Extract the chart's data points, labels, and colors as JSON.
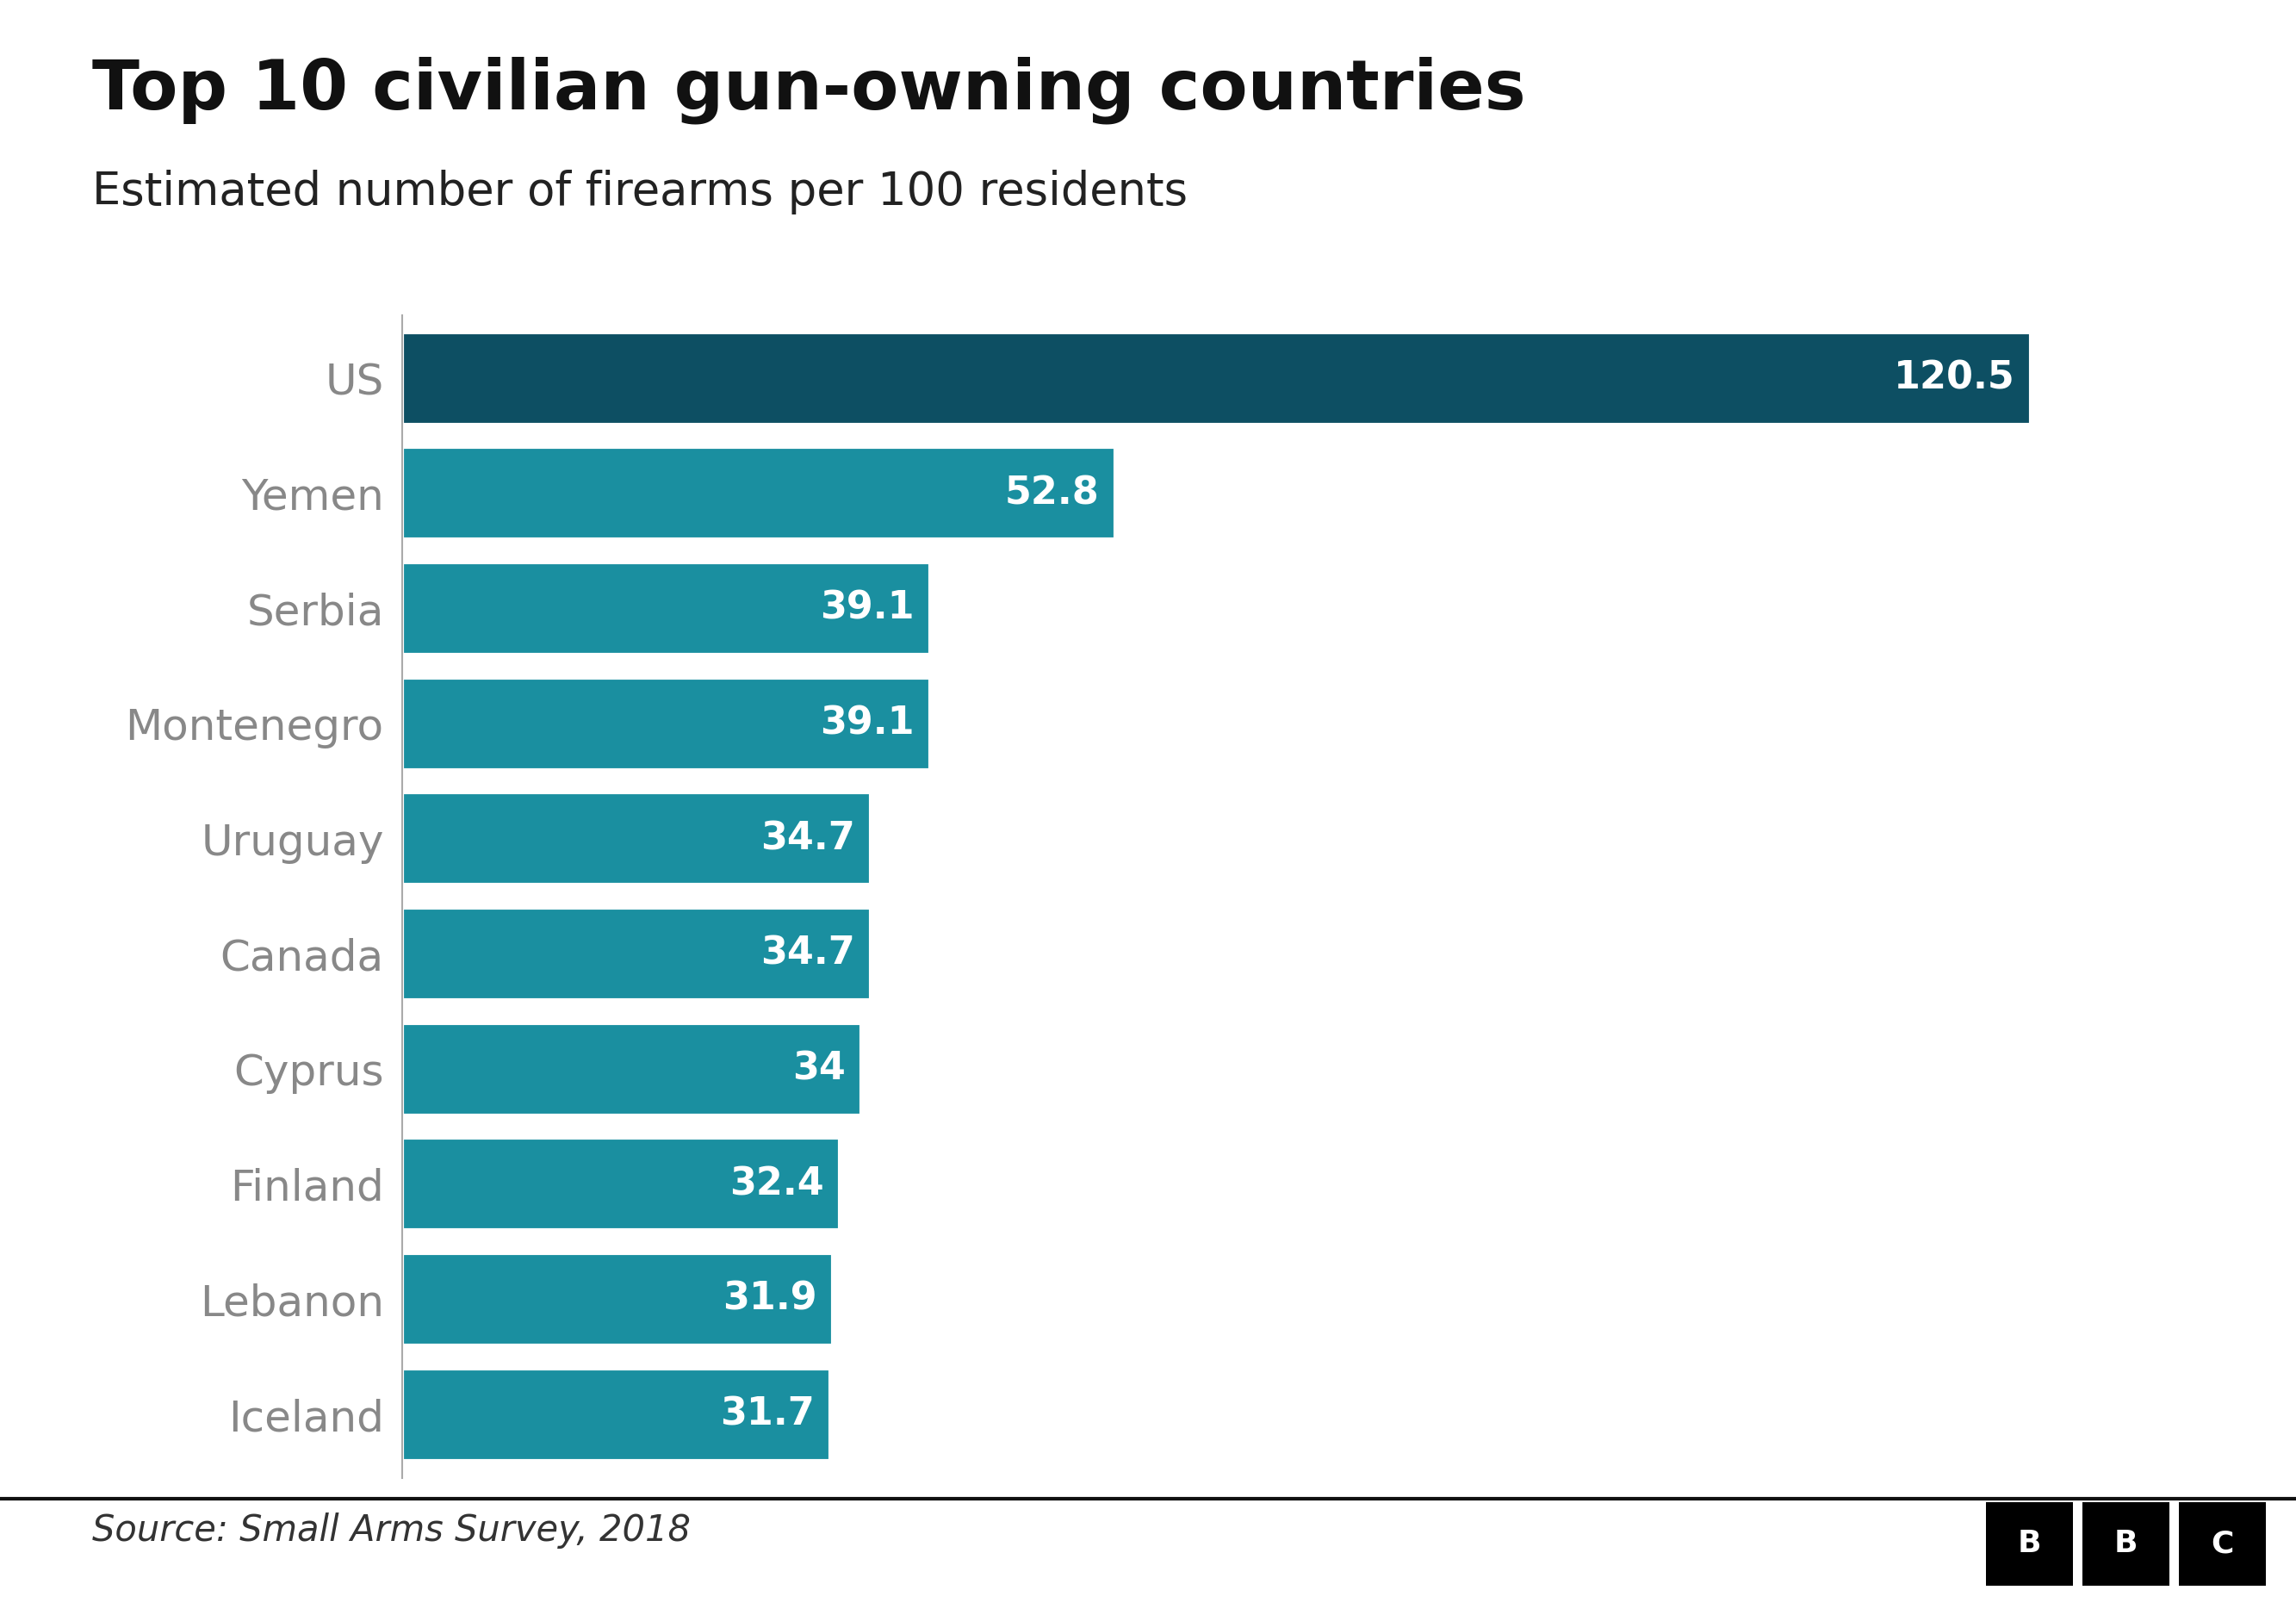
{
  "title": "Top 10 civilian gun-owning countries",
  "subtitle": "Estimated number of firearms per 100 residents",
  "source": "Source: Small Arms Survey, 2018",
  "categories": [
    "US",
    "Yemen",
    "Serbia",
    "Montenegro",
    "Uruguay",
    "Canada",
    "Cyprus",
    "Finland",
    "Lebanon",
    "Iceland"
  ],
  "values": [
    120.5,
    52.8,
    39.1,
    39.1,
    34.7,
    34.7,
    34,
    32.4,
    31.9,
    31.7
  ],
  "bar_colors": [
    "#0d4f63",
    "#1a8fa0",
    "#1a8fa0",
    "#1a8fa0",
    "#1a8fa0",
    "#1a8fa0",
    "#1a8fa0",
    "#1a8fa0",
    "#1a8fa0",
    "#1a8fa0"
  ],
  "label_color": "#ffffff",
  "title_fontsize": 58,
  "subtitle_fontsize": 38,
  "source_fontsize": 30,
  "label_fontsize": 32,
  "ytick_fontsize": 36,
  "background_color": "#ffffff",
  "xlim": [
    0,
    135
  ],
  "bbc_box_color": "#000000",
  "bbc_text_color": "#ffffff",
  "ytick_color": "#888888"
}
